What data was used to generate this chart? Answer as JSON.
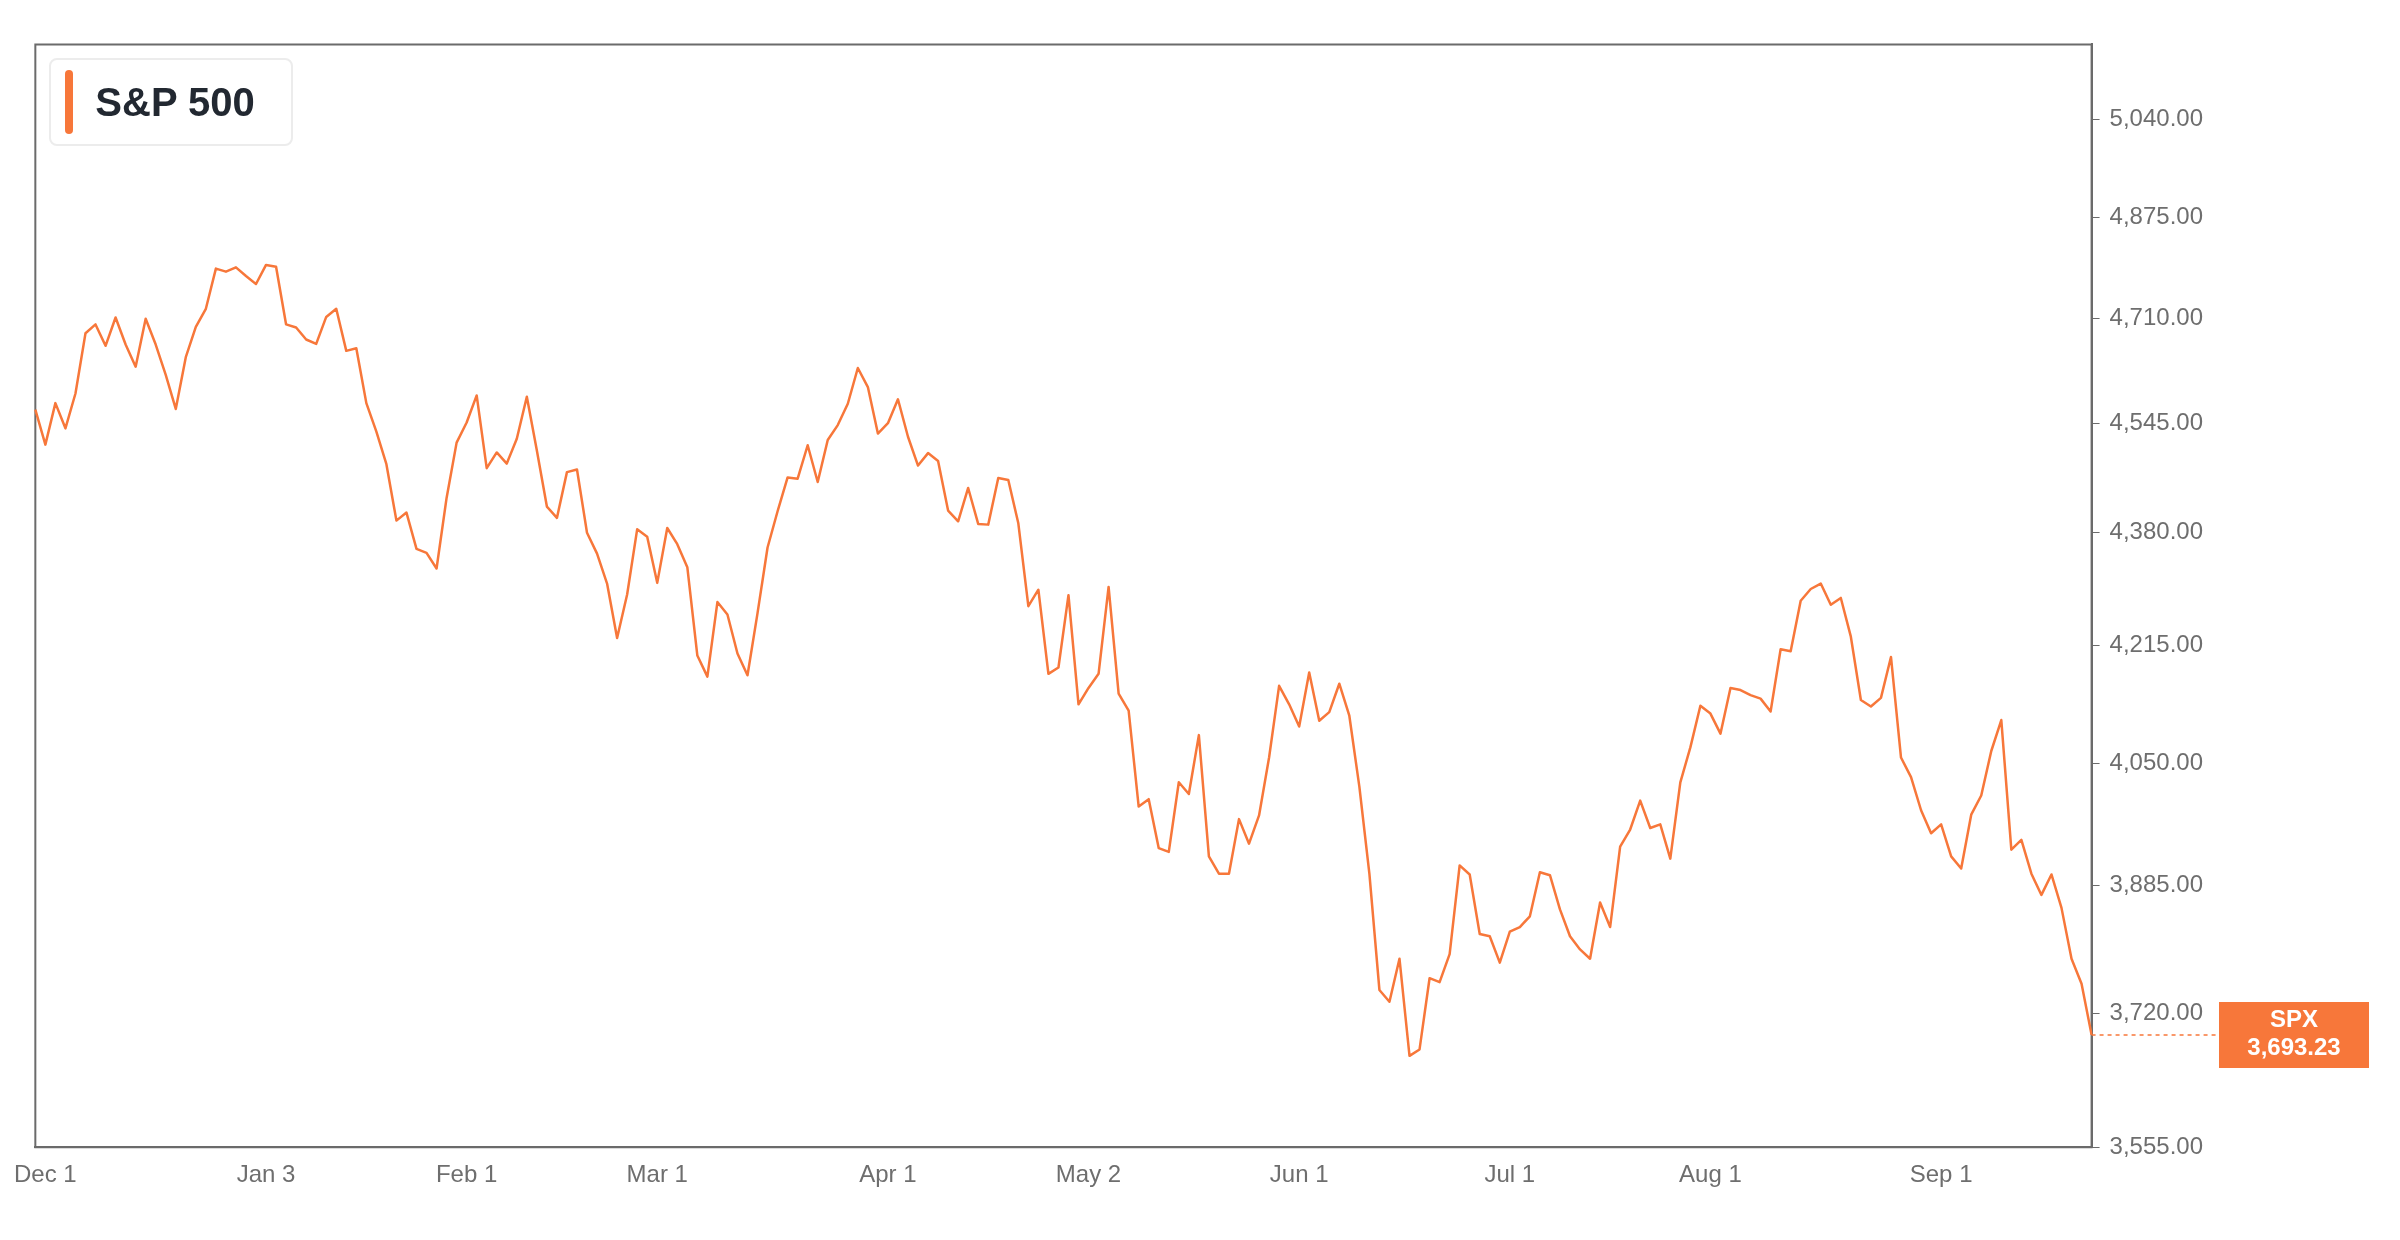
{
  "chart_data": {
    "type": "line",
    "categories": [
      null,
      "Dec 1",
      null,
      null,
      null,
      null,
      null,
      null,
      null,
      null,
      null,
      null,
      null,
      null,
      null,
      null,
      null,
      null,
      null,
      null,
      null,
      null,
      null,
      "Jan 3",
      null,
      null,
      null,
      null,
      null,
      null,
      null,
      null,
      null,
      null,
      null,
      null,
      null,
      null,
      null,
      null,
      null,
      null,
      null,
      "Feb 1",
      null,
      null,
      null,
      null,
      null,
      null,
      null,
      null,
      null,
      null,
      null,
      null,
      null,
      null,
      null,
      null,
      null,
      null,
      "Mar 1",
      null,
      null,
      null,
      null,
      null,
      null,
      null,
      null,
      null,
      null,
      null,
      null,
      null,
      null,
      null,
      null,
      null,
      null,
      null,
      null,
      null,
      null,
      "Apr 1",
      null,
      null,
      null,
      null,
      null,
      null,
      null,
      null,
      null,
      null,
      null,
      null,
      null,
      null,
      null,
      null,
      null,
      null,
      null,
      "May 2",
      null,
      null,
      null,
      null,
      null,
      null,
      null,
      null,
      null,
      null,
      null,
      null,
      null,
      null,
      null,
      null,
      null,
      null,
      null,
      null,
      "Jun 1",
      null,
      null,
      null,
      null,
      null,
      null,
      null,
      null,
      null,
      null,
      null,
      null,
      null,
      null,
      null,
      null,
      null,
      null,
      null,
      null,
      "Jul 1",
      null,
      null,
      null,
      null,
      null,
      null,
      null,
      null,
      null,
      null,
      null,
      null,
      null,
      null,
      null,
      null,
      null,
      null,
      null,
      "Aug 1",
      null,
      null,
      null,
      null,
      null,
      null,
      null,
      null,
      null,
      null,
      null,
      null,
      null,
      null,
      null,
      null,
      null,
      null,
      null,
      null,
      null,
      null,
      "Sep 1",
      null,
      null,
      null,
      null,
      null,
      null,
      null,
      null,
      null,
      null,
      null,
      null,
      null,
      null,
      null
    ],
    "series": [
      {
        "name": "S&P 500",
        "color": "#f7773a",
        "values": [
          4567,
          4513,
          4577,
          4538,
          4592,
          4687,
          4701,
          4667,
          4712,
          4669,
          4634,
          4710,
          4669,
          4621,
          4568,
          4649,
          4697,
          4726,
          4791,
          4786,
          4793,
          4779,
          4766,
          4797,
          4794,
          4701,
          4696,
          4677,
          4670,
          4713,
          4726,
          4659,
          4663,
          4577,
          4533,
          4483,
          4398,
          4410,
          4356,
          4350,
          4327,
          4432,
          4516,
          4547,
          4589,
          4477,
          4501,
          4484,
          4522,
          4587,
          4504,
          4419,
          4402,
          4471,
          4475,
          4380,
          4349,
          4305,
          4226,
          4289,
          4385,
          4374,
          4306,
          4387,
          4363,
          4329,
          4201,
          4171,
          4278,
          4260,
          4204,
          4173,
          4262,
          4358,
          4412,
          4463,
          4461,
          4512,
          4456,
          4520,
          4543,
          4576,
          4632,
          4602,
          4530,
          4546,
          4583,
          4525,
          4481,
          4500,
          4488,
          4413,
          4397,
          4447,
          4393,
          4392,
          4462,
          4459,
          4394,
          4272,
          4296,
          4175,
          4184,
          4288,
          4132,
          4155,
          4175,
          4300,
          4147,
          4123,
          3991,
          4001,
          3935,
          3930,
          4024,
          4008,
          4089,
          3924,
          3901,
          3901,
          3974,
          3941,
          3979,
          4058,
          4158,
          4132,
          4101,
          4177,
          4109,
          4121,
          4161,
          4116,
          4018,
          3901,
          3750,
          3735,
          3790,
          3667,
          3675,
          3765,
          3760,
          3796,
          3912,
          3900,
          3822,
          3819,
          3785,
          3825,
          3831,
          3845,
          3903,
          3899,
          3854,
          3819,
          3802,
          3790,
          3863,
          3831,
          3937,
          3960,
          3999,
          3962,
          3967,
          3921,
          4024,
          4072,
          4130,
          4119,
          4091,
          4155,
          4152,
          4145,
          4140,
          4122,
          4210,
          4207,
          4280,
          4297,
          4305,
          4274,
          4284,
          4228,
          4138,
          4129,
          4141,
          4199,
          4058,
          4031,
          3986,
          3955,
          3967,
          3924,
          3908,
          3980,
          4006,
          4067,
          4110,
          3933,
          3946,
          3901,
          3873,
          3900,
          3856,
          3790,
          3758,
          3693.23
        ],
        "value_labels": [
          null,
          null,
          null,
          null,
          null,
          null,
          null,
          null,
          null,
          null,
          null,
          null,
          null,
          null,
          null,
          null,
          null,
          null,
          null,
          null,
          null,
          null,
          null,
          null,
          null,
          null,
          null,
          null,
          null,
          null,
          null,
          null,
          null,
          null,
          null,
          null,
          null,
          null,
          null,
          null,
          null,
          null,
          null,
          null,
          null,
          null,
          null,
          null,
          null,
          null,
          null,
          null,
          null,
          null,
          null,
          null,
          null,
          null,
          null,
          null,
          null,
          null,
          null,
          null,
          null,
          null,
          null,
          null,
          null,
          null,
          null,
          null,
          null,
          null,
          null,
          null,
          null,
          null,
          null,
          null,
          null,
          null,
          null,
          null,
          null,
          null,
          null,
          null,
          null,
          null,
          null,
          null,
          null,
          null,
          null,
          null,
          null,
          null,
          null,
          null,
          null,
          null,
          null,
          null,
          null,
          null,
          null,
          null,
          null,
          null,
          null,
          null,
          null,
          null,
          null,
          null,
          null,
          null,
          null,
          null,
          null,
          null,
          null,
          null,
          null,
          null,
          null,
          null,
          null,
          null,
          null,
          null,
          null,
          null,
          null,
          null,
          null,
          null,
          null,
          null,
          null,
          null,
          null,
          null,
          null,
          null,
          null,
          null,
          null,
          null,
          null,
          null,
          null,
          null,
          null,
          null,
          null,
          null,
          null,
          null,
          null,
          null,
          null,
          null,
          null,
          null,
          null,
          null,
          null,
          null,
          null,
          null,
          null,
          null,
          null,
          null,
          null,
          null,
          null,
          null,
          null,
          null,
          null,
          null,
          null,
          null,
          null,
          null,
          null,
          null,
          null,
          null,
          null,
          null,
          null,
          null,
          null,
          null,
          null,
          null,
          null,
          null,
          null,
          null,
          null,
          "3,693.23"
        ]
      }
    ],
    "annotations": [
      "SPX"
    ],
    "ylim": [
      3555,
      5170
    ],
    "yticks": [
      {
        "value": 3555,
        "label": "3,555.00"
      },
      {
        "value": 3720,
        "label": "3,720.00"
      },
      {
        "value": 3885,
        "label": "3,885.00"
      },
      {
        "value": 4050,
        "label": "4,050.00"
      },
      {
        "value": 4215,
        "label": "4,215.00"
      },
      {
        "value": 4380,
        "label": "4,380.00"
      },
      {
        "value": 4545,
        "label": "4,545.00"
      },
      {
        "value": 4710,
        "label": "4,710.00"
      },
      {
        "value": 4875,
        "label": "4,875.00"
      },
      {
        "value": 5040,
        "label": "5,040.00"
      }
    ],
    "log": true,
    "grid": false,
    "legend": "top left",
    "marker": "none",
    "line_style": "solid"
  }
}
